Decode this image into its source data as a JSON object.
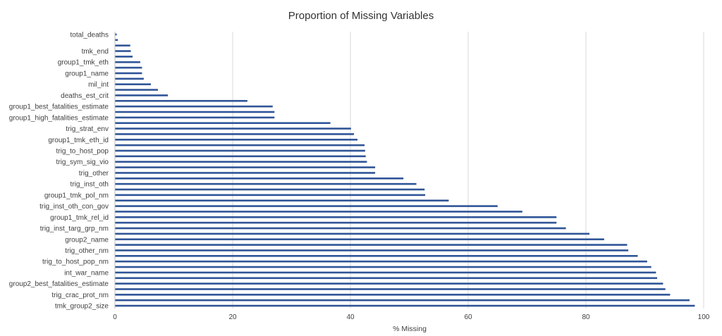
{
  "chart_data": {
    "type": "bar",
    "orientation": "horizontal",
    "title": "Proportion of Missing Variables",
    "xlabel": "% Missing",
    "ylabel": "",
    "xlim": [
      0,
      100
    ],
    "xticks": [
      0,
      20,
      40,
      60,
      80,
      100
    ],
    "grid": true,
    "legend": "none",
    "bar_color": "#2f5597",
    "bars": [
      {
        "label": "total_deaths",
        "value": 0.3
      },
      {
        "label": "",
        "value": 0.5
      },
      {
        "label": "",
        "value": 2.6
      },
      {
        "label": "tmk_end",
        "value": 2.7
      },
      {
        "label": "",
        "value": 3.0
      },
      {
        "label": "group1_tmk_eth",
        "value": 4.3
      },
      {
        "label": "",
        "value": 4.6
      },
      {
        "label": "group1_name",
        "value": 4.6
      },
      {
        "label": "",
        "value": 4.9
      },
      {
        "label": "mil_int",
        "value": 6.1
      },
      {
        "label": "",
        "value": 7.3
      },
      {
        "label": "deaths_est_crit",
        "value": 9.0
      },
      {
        "label": "",
        "value": 22.5
      },
      {
        "label": "group1_best_fatalities_estimate",
        "value": 26.8
      },
      {
        "label": "",
        "value": 27.1
      },
      {
        "label": "group1_high_fatalities_estimate",
        "value": 27.1
      },
      {
        "label": "",
        "value": 36.6
      },
      {
        "label": "trig_strat_env",
        "value": 40.1
      },
      {
        "label": "",
        "value": 40.6
      },
      {
        "label": "group1_tmk_eth_id",
        "value": 41.2
      },
      {
        "label": "",
        "value": 42.4
      },
      {
        "label": "trig_to_host_pop",
        "value": 42.5
      },
      {
        "label": "",
        "value": 42.6
      },
      {
        "label": "trig_sym_sig_vio",
        "value": 42.8
      },
      {
        "label": "",
        "value": 44.2
      },
      {
        "label": "trig_other",
        "value": 44.2
      },
      {
        "label": "",
        "value": 49.0
      },
      {
        "label": "trig_inst_oth",
        "value": 51.2
      },
      {
        "label": "",
        "value": 52.6
      },
      {
        "label": "group1_tmk_pol_nm",
        "value": 52.7
      },
      {
        "label": "",
        "value": 56.7
      },
      {
        "label": "trig_inst_oth_con_gov",
        "value": 65.0
      },
      {
        "label": "",
        "value": 69.2
      },
      {
        "label": "group1_tmk_rel_id",
        "value": 75.0
      },
      {
        "label": "",
        "value": 75.0
      },
      {
        "label": "trig_inst_targ_grp_nm",
        "value": 76.6
      },
      {
        "label": "",
        "value": 80.6
      },
      {
        "label": "group2_name",
        "value": 83.1
      },
      {
        "label": "",
        "value": 87.0
      },
      {
        "label": "trig_other_nm",
        "value": 87.2
      },
      {
        "label": "",
        "value": 88.8
      },
      {
        "label": "trig_to_host_pop_nm",
        "value": 90.4
      },
      {
        "label": "",
        "value": 91.1
      },
      {
        "label": "int_war_name",
        "value": 91.9
      },
      {
        "label": "",
        "value": 92.1
      },
      {
        "label": "group2_best_fatalities_estimate",
        "value": 93.1
      },
      {
        "label": "",
        "value": 93.5
      },
      {
        "label": "trig_crac_prot_nm",
        "value": 94.3
      },
      {
        "label": "",
        "value": 97.6
      },
      {
        "label": "tmk_group2_size",
        "value": 98.5
      }
    ]
  }
}
